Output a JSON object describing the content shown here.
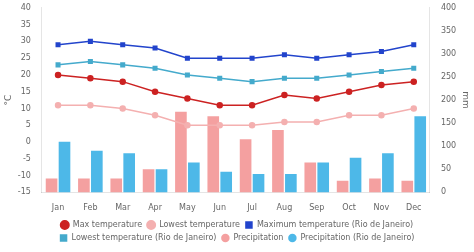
{
  "chart_data": {
    "type": "bar",
    "categories": [
      "Jan",
      "Feb",
      "Mar",
      "Apr",
      "May",
      "Jun",
      "Jul",
      "Aug",
      "Sep",
      "Oct",
      "Nov",
      "Dec"
    ],
    "ylabel": "°C",
    "y2label": "mm",
    "ylim": [
      -15,
      40
    ],
    "yticks": [
      -15,
      -10,
      -5,
      0,
      5,
      10,
      15,
      20,
      25,
      30,
      35,
      40
    ],
    "y2lim": [
      0,
      400
    ],
    "y2ticks": [
      0,
      50,
      100,
      150,
      200,
      250,
      300,
      350,
      400
    ],
    "grid": false,
    "legend": "bottom",
    "series": [
      {
        "name": "Max temperature",
        "type": "line",
        "color": "#cc2222",
        "marker": "circle",
        "values": [
          20,
          19,
          18,
          15,
          13,
          11,
          11,
          14,
          13,
          15,
          17,
          18
        ]
      },
      {
        "name": "Lowest temperature",
        "type": "line",
        "color": "#f4b0b0",
        "marker": "circle",
        "values": [
          11,
          11,
          10,
          8,
          5,
          5,
          5,
          6,
          6,
          8,
          8,
          10
        ]
      },
      {
        "name": "Precipitation",
        "type": "bar",
        "axis": "y2",
        "color": "#f4a0a0",
        "values": [
          30,
          30,
          30,
          50,
          175,
          165,
          115,
          135,
          65,
          25,
          30,
          25
        ]
      },
      {
        "name": "Maximum temperature (Rio de Janeiro)",
        "type": "line",
        "color": "#2244cc",
        "marker": "square",
        "values": [
          29,
          30,
          29,
          28,
          25,
          25,
          25,
          26,
          25,
          26,
          27,
          29
        ]
      },
      {
        "name": "Lowest temperature (Rio de Janeiro)",
        "type": "line",
        "color": "#44aacc",
        "marker": "square",
        "values": [
          23,
          24,
          23,
          22,
          20,
          19,
          18,
          19,
          19,
          20,
          21,
          22
        ]
      },
      {
        "name": "Precipitation (Rio de Janeiro)",
        "type": "bar",
        "axis": "y2",
        "color": "#4db8e8",
        "values": [
          110,
          90,
          85,
          50,
          65,
          45,
          40,
          40,
          65,
          75,
          85,
          165
        ]
      }
    ]
  }
}
